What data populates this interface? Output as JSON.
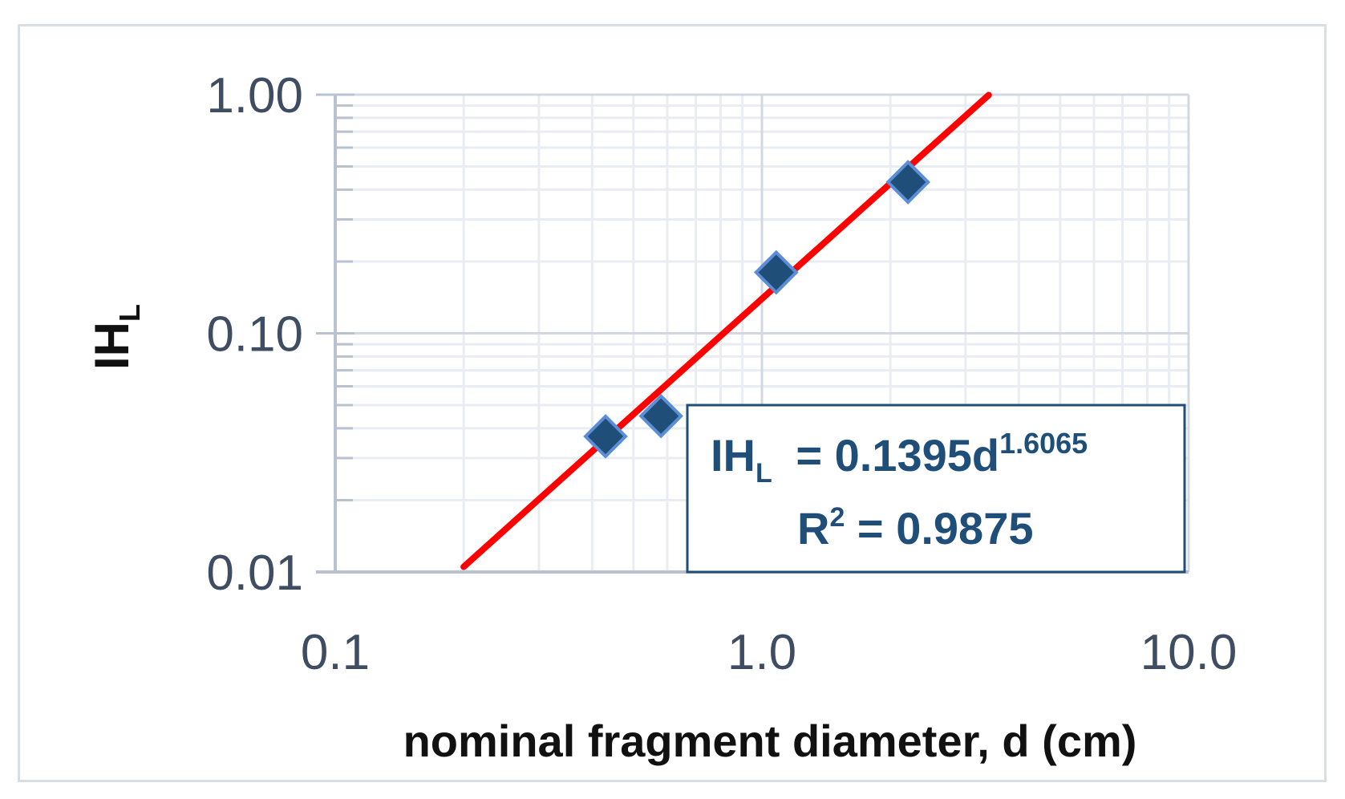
{
  "chart_data": {
    "type": "scatter",
    "x_scale": "log",
    "y_scale": "log",
    "xlim": [
      0.1,
      10.0
    ],
    "ylim": [
      0.01,
      1.0
    ],
    "x_ticks": [
      0.1,
      1.0,
      10.0
    ],
    "x_tick_labels": [
      "0.1",
      "1.0",
      "10.0"
    ],
    "y_ticks": [
      0.01,
      0.1,
      1.0
    ],
    "y_tick_labels": [
      "0.01",
      "0.10",
      "1.00"
    ],
    "xlabel": "nominal fragment diameter, d (cm)",
    "ylabel": {
      "main": "IH",
      "sub": "L"
    },
    "grid": true,
    "series": [
      {
        "marker": "diamond",
        "color": "#1f4e79",
        "points": [
          {
            "x": 0.43,
            "y": 0.037
          },
          {
            "x": 0.58,
            "y": 0.045
          },
          {
            "x": 1.08,
            "y": 0.18
          },
          {
            "x": 2.2,
            "y": 0.43
          }
        ]
      }
    ],
    "trendline": {
      "type": "power",
      "coefficient": 0.1395,
      "exponent": 1.6065,
      "r_squared": 0.9875,
      "color": "#ff0000",
      "x_range": [
        0.2,
        3.4
      ]
    },
    "annotation": {
      "eq_lhs_main": "IH",
      "eq_lhs_sub": "L",
      "eq_rhs": " = 0.1395d",
      "eq_exp": "1.6065",
      "r2_main": "R",
      "r2_sup": "2",
      "r2_rest": " = 0.9875"
    }
  }
}
